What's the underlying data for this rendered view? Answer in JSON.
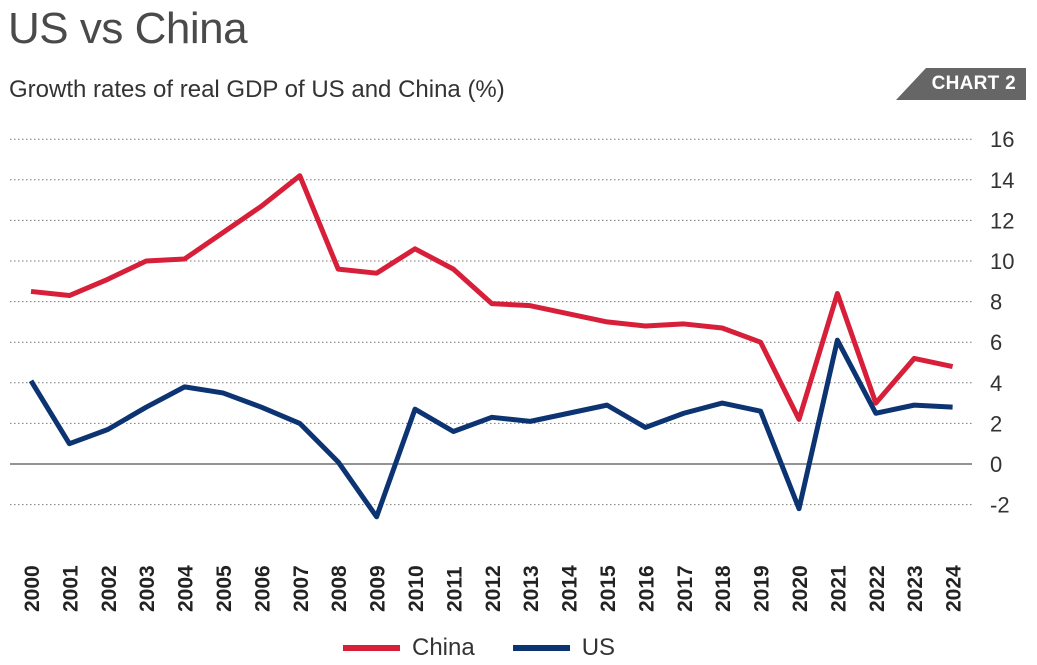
{
  "header": {
    "title": "US vs China",
    "subtitle": "Growth rates of real GDP of US and China (%)",
    "tag": "CHART 2"
  },
  "colors": {
    "china": "#d71f3a",
    "us": "#0c3473",
    "grid": "#777777",
    "tag_bg": "#666666"
  },
  "chart_data": {
    "type": "line",
    "x": [
      "2000",
      "2001",
      "2002",
      "2003",
      "2004",
      "2005",
      "2006",
      "2007",
      "2008",
      "2009",
      "2010",
      "2011",
      "2012",
      "2013",
      "2014",
      "2015",
      "2016",
      "2017",
      "2018",
      "2019",
      "2020",
      "2021",
      "2022",
      "2023",
      "2024"
    ],
    "series": [
      {
        "name": "China",
        "color": "#d71f3a",
        "values": [
          8.5,
          8.3,
          9.1,
          10.0,
          10.1,
          11.4,
          12.7,
          14.2,
          9.6,
          9.4,
          10.6,
          9.6,
          7.9,
          7.8,
          7.4,
          7.0,
          6.8,
          6.9,
          6.7,
          6.0,
          2.2,
          8.4,
          3.0,
          5.2,
          4.8
        ]
      },
      {
        "name": "US",
        "color": "#0c3473",
        "values": [
          4.1,
          1.0,
          1.7,
          2.8,
          3.8,
          3.5,
          2.8,
          2.0,
          0.1,
          -2.6,
          2.7,
          1.6,
          2.3,
          2.1,
          2.5,
          2.9,
          1.8,
          2.5,
          3.0,
          2.6,
          -2.2,
          6.1,
          2.5,
          2.9,
          2.8
        ]
      }
    ],
    "yticks": [
      -2,
      0,
      2,
      4,
      6,
      8,
      10,
      12,
      14,
      16
    ],
    "ylim": [
      -3,
      16.5
    ],
    "y_axis_side": "right",
    "grid": "horizontal-dotted",
    "legend_position": "bottom-center"
  },
  "legend": {
    "items": [
      {
        "label": "China",
        "color": "#d71f3a"
      },
      {
        "label": "US",
        "color": "#0c3473"
      }
    ]
  }
}
